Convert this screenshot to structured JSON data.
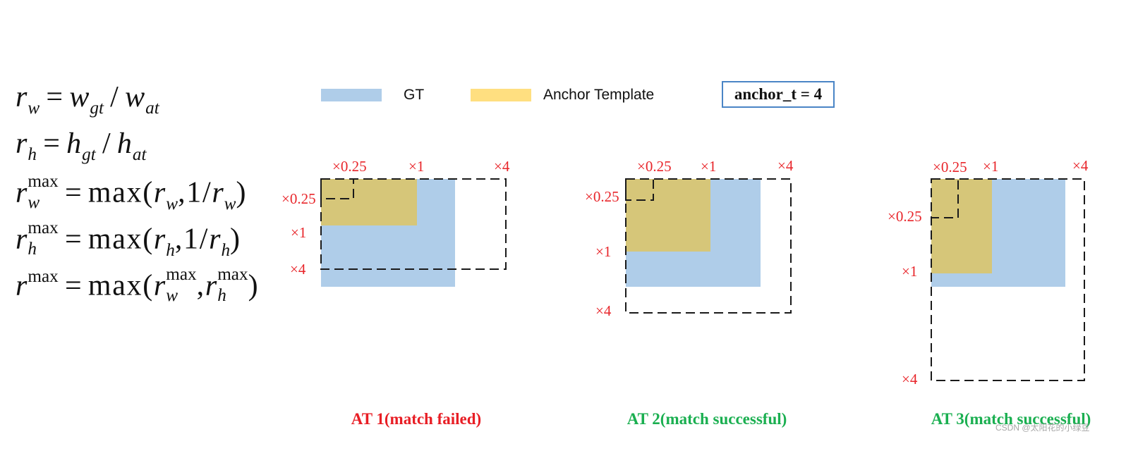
{
  "formulas": [
    {
      "terms": [
        {
          "var": "r",
          "sub": "w"
        },
        {
          "op": "="
        },
        {
          "var": "w",
          "sub": "gt"
        },
        {
          "op": "/"
        },
        {
          "var": "w",
          "sub": "at"
        }
      ]
    },
    {
      "terms": [
        {
          "var": "r",
          "sub": "h"
        },
        {
          "op": "="
        },
        {
          "var": "h",
          "sub": "gt"
        },
        {
          "op": "/"
        },
        {
          "var": "h",
          "sub": "at"
        }
      ]
    },
    {
      "terms": [
        {
          "var": "r",
          "sub": "w",
          "sup": "max"
        },
        {
          "op": "="
        },
        {
          "txt": "max("
        },
        {
          "var": "r",
          "sub": "w"
        },
        {
          "txt": ",1/"
        },
        {
          "var": "r",
          "sub": "w"
        },
        {
          "txt": ")"
        }
      ]
    },
    {
      "terms": [
        {
          "var": "r",
          "sub": "h",
          "sup": "max"
        },
        {
          "op": "="
        },
        {
          "txt": "max("
        },
        {
          "var": "r",
          "sub": "h"
        },
        {
          "txt": ",1/"
        },
        {
          "var": "r",
          "sub": "h"
        },
        {
          "txt": ")"
        }
      ]
    },
    {
      "terms": [
        {
          "var": "r",
          "sup": "max"
        },
        {
          "op": "="
        },
        {
          "txt": "max("
        },
        {
          "var": "r",
          "sub": "w",
          "sup": "max"
        },
        {
          "txt": ","
        },
        {
          "var": "r",
          "sub": "h",
          "sup": "max"
        },
        {
          "txt": ")"
        }
      ]
    }
  ],
  "legend": {
    "gt_label": "GT",
    "anchor_label": "Anchor Template",
    "threshold": "anchor_t = 4"
  },
  "scale_labels": [
    "×0.25",
    "×1",
    "×4"
  ],
  "diagrams": [
    {
      "caption": "AT 1(match failed)"
    },
    {
      "caption": "AT 2(match successful)"
    },
    {
      "caption": "AT 3(match successful)"
    }
  ],
  "colors": {
    "gt": "#afcde9",
    "anchor_legend": "#ffdf80",
    "anchor_overlay": "#d6c679",
    "scale_label": "#e8262b",
    "caption_failed": "#e81e25",
    "caption_success": "#1aaf50",
    "threshold_border": "#4a85c6",
    "dashed": "#1a1a1a"
  },
  "watermark": "CSDN @太阳花的小绿豆"
}
